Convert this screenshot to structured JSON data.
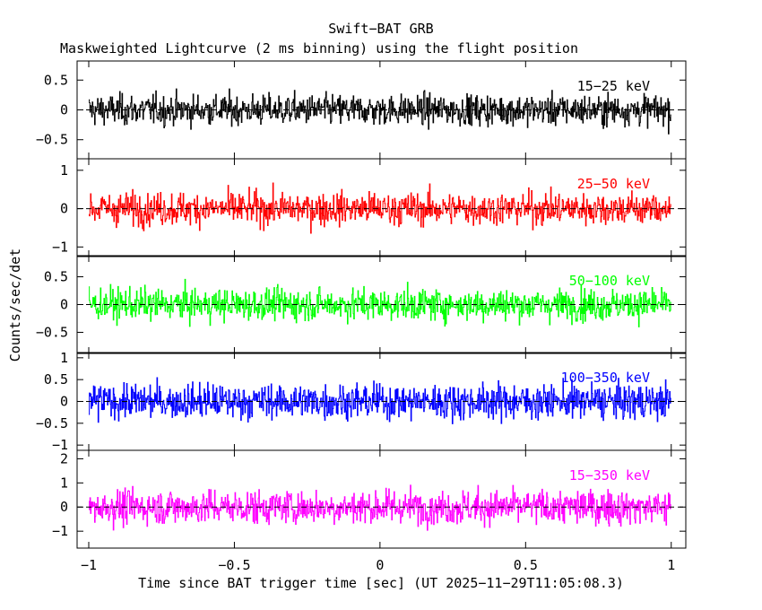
{
  "chart_data": {
    "type": "line",
    "title": "Swift−BAT GRB",
    "subtitle": "Maskweighted Lightcurve (2 ms binning) using the flight position",
    "xlabel": "Time since BAT trigger time [sec] (UT 2025−11−29T11:05:08.3)",
    "ylabel": "Counts/sec/det",
    "xlim": [
      -1.04,
      1.05
    ],
    "xticks": [
      -1,
      -0.5,
      0,
      0.5,
      1
    ],
    "xtick_labels": [
      "−1",
      "−0.5",
      "0",
      "0.5",
      "1"
    ],
    "bin_width_s": 0.002,
    "t_start": -1.0,
    "t_end": 1.0,
    "panels": [
      {
        "band": "15−25 keV",
        "color": "#000000",
        "ylim": [
          -0.82,
          0.82
        ],
        "yticks": [
          -0.5,
          0,
          0.5
        ],
        "ytick_labels": [
          "−0.5",
          "0",
          "0.5"
        ],
        "noise_sigma": 0.18,
        "min": -0.75,
        "max": 0.8
      },
      {
        "band": "25−50 keV",
        "color": "#ff0000",
        "ylim": [
          -1.25,
          1.3
        ],
        "yticks": [
          -1,
          0,
          1
        ],
        "ytick_labels": [
          "−1",
          "0",
          "1"
        ],
        "noise_sigma": 0.3,
        "min": -1.2,
        "max": 1.2
      },
      {
        "band": "50−100 keV",
        "color": "#00ff00",
        "ylim": [
          -0.88,
          0.88
        ],
        "yticks": [
          -0.5,
          0,
          0.5
        ],
        "ytick_labels": [
          "−0.5",
          "0",
          "0.5"
        ],
        "noise_sigma": 0.2,
        "min": -0.85,
        "max": 0.85
      },
      {
        "band": "100−350 keV",
        "color": "#0000ff",
        "ylim": [
          -1.12,
          1.12
        ],
        "yticks": [
          -1,
          -0.5,
          0,
          0.5,
          1
        ],
        "ytick_labels": [
          "−1",
          "−0.5",
          "0",
          "0.5",
          "1"
        ],
        "noise_sigma": 0.28,
        "min": -1.1,
        "max": 1.1
      },
      {
        "band": "15−350 keV",
        "color": "#ff00ff",
        "ylim": [
          -1.7,
          2.35
        ],
        "yticks": [
          -1,
          0,
          1,
          2
        ],
        "ytick_labels": [
          "−1",
          "0",
          "1",
          "2"
        ],
        "noise_sigma": 0.5,
        "min": -1.6,
        "max": 2.2
      }
    ]
  }
}
